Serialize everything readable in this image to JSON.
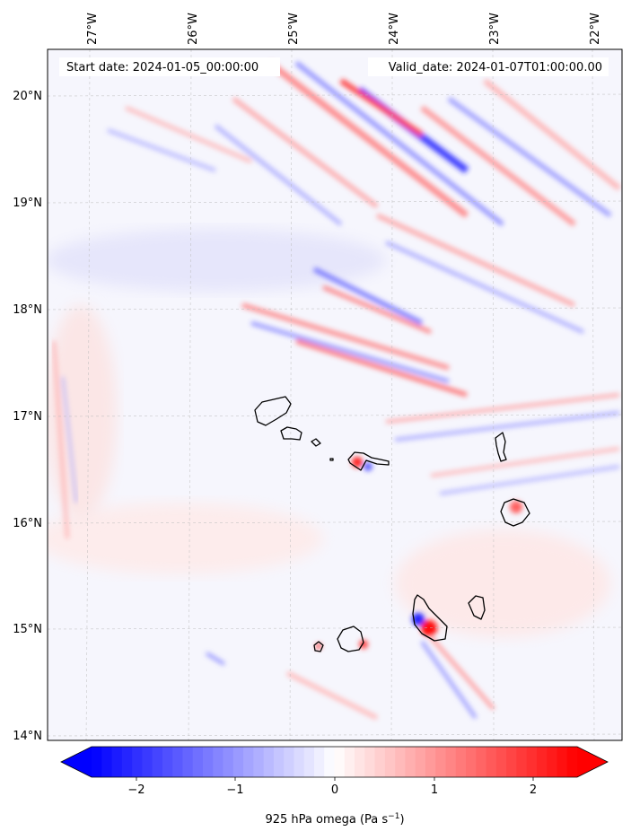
{
  "header": {
    "start_label": "Start date: 2024-01-05_00:00:00",
    "valid_label": "Valid_date: 2024-01-07T01:00:00.00"
  },
  "map": {
    "longitude_labels": [
      "27°W",
      "26°W",
      "25°W",
      "24°W",
      "23°W",
      "22°W"
    ],
    "latitude_labels": [
      "20°N",
      "19°N",
      "18°N",
      "17°N",
      "16°N",
      "15°N",
      "14°N"
    ],
    "coastline_color": "#000000",
    "gridline_color": "#bbbbbb"
  },
  "colorbar": {
    "tick_labels": [
      "−2",
      "−1",
      "0",
      "1",
      "2"
    ],
    "label_prefix": "925 hPa omega (Pa s",
    "label_exponent": "−1",
    "label_suffix": ")",
    "range": [
      -2.6,
      2.6
    ],
    "colormap": "bwr",
    "low_color": "#0000ff",
    "mid_color": "#ffffff",
    "high_color": "#ff0000",
    "extend": "both"
  }
}
